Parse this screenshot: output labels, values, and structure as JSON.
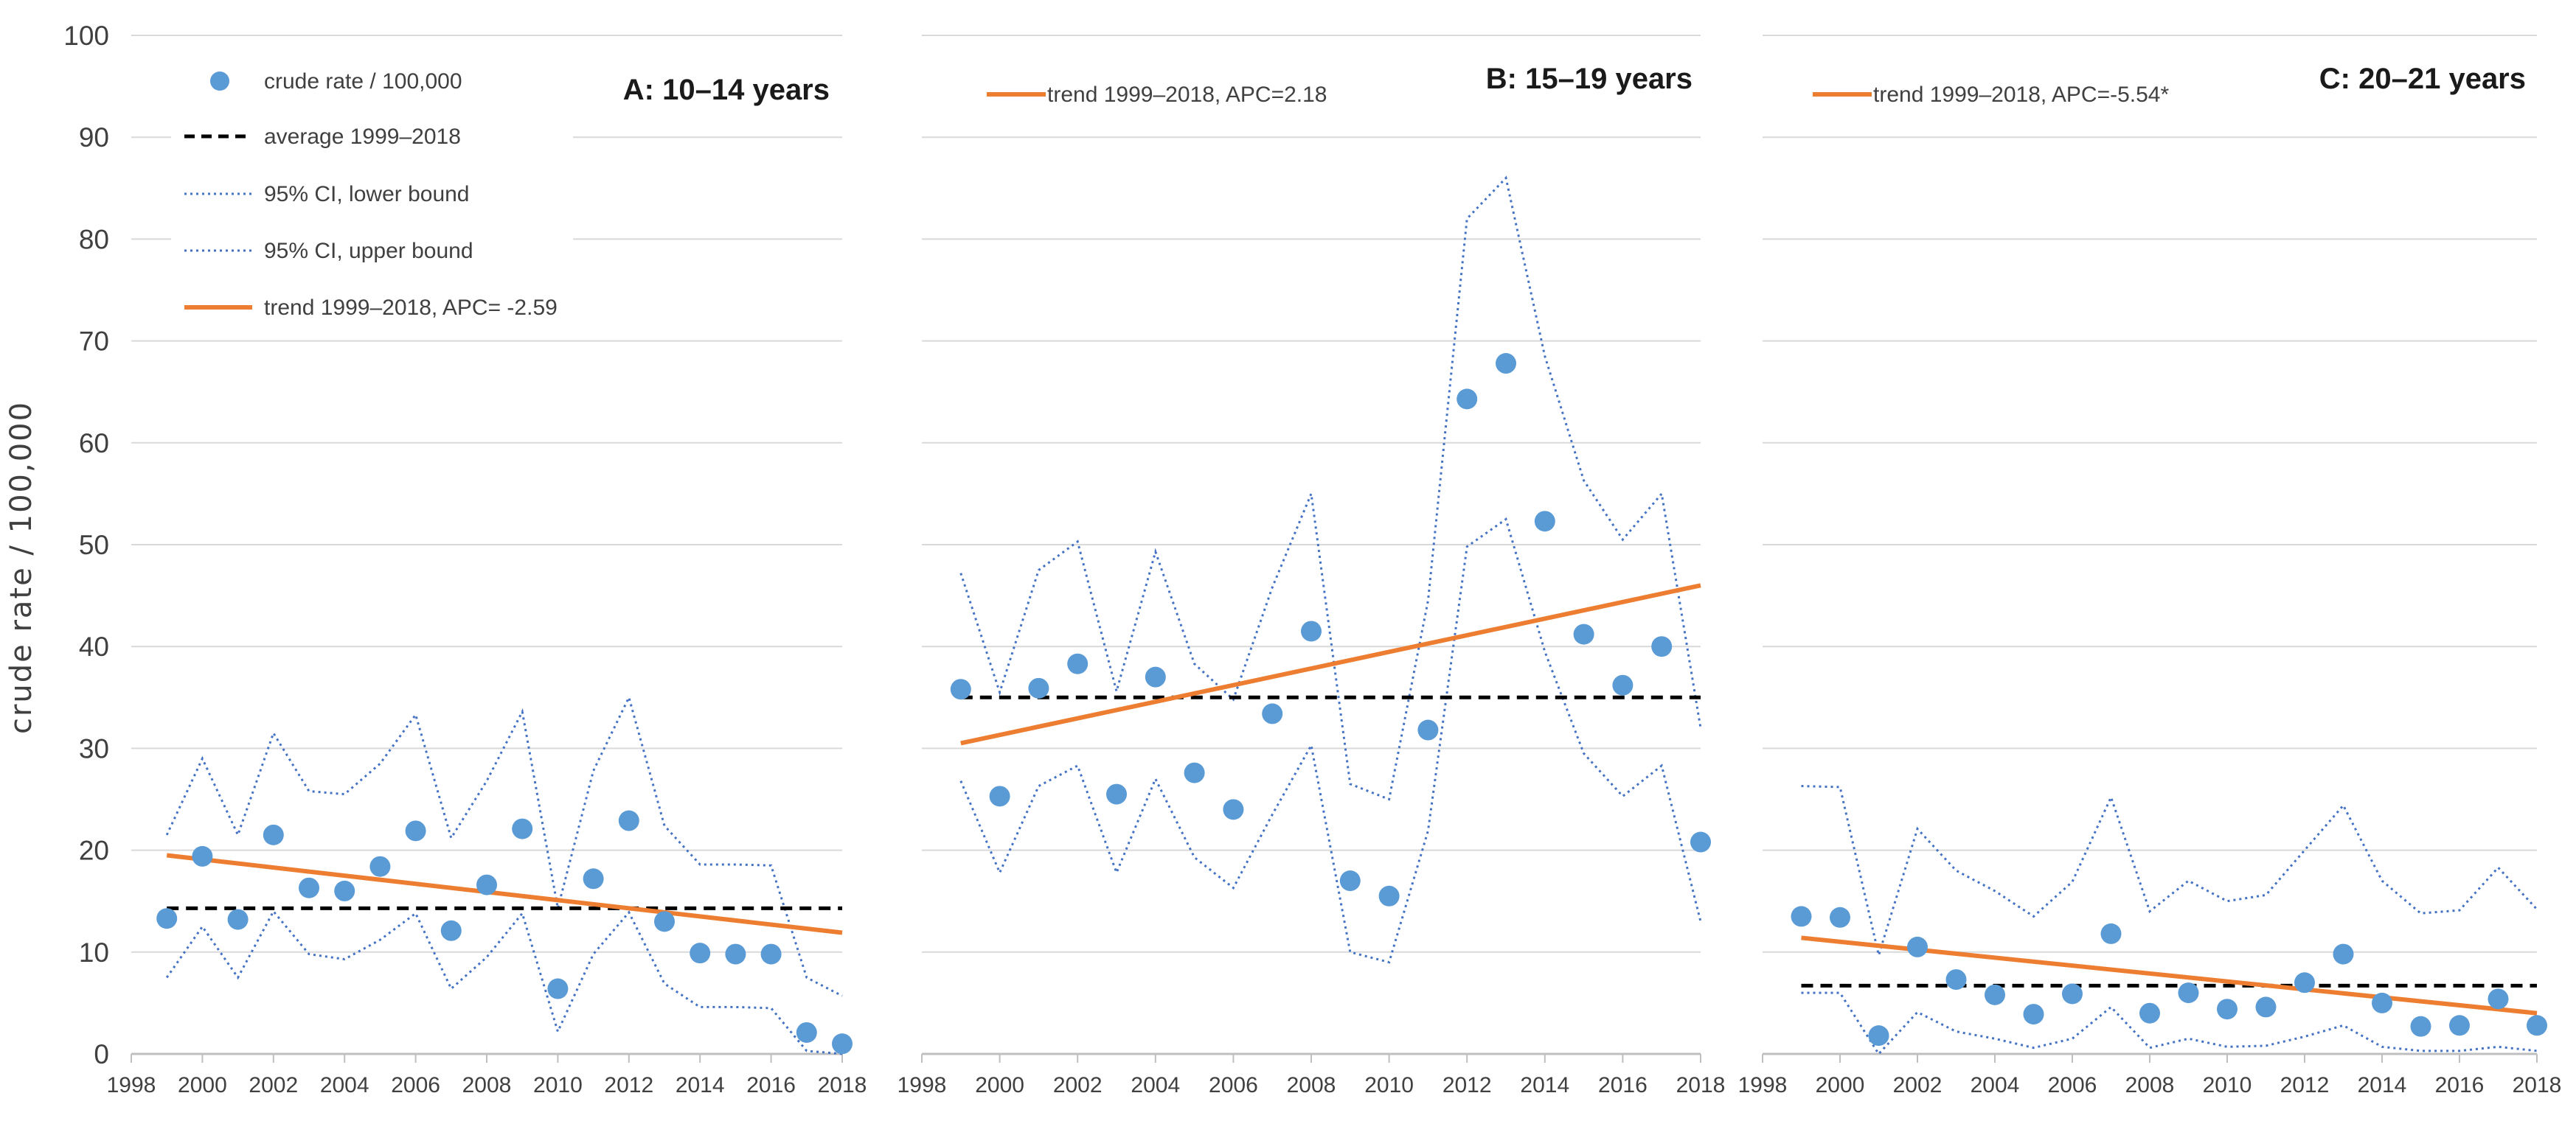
{
  "chart_data": {
    "ylabel": "crude rate / 100,000",
    "ylim": [
      0,
      100
    ],
    "yticks": [
      0,
      10,
      20,
      30,
      40,
      50,
      60,
      70,
      80,
      90,
      100
    ],
    "xlim": [
      1998,
      2018
    ],
    "xticks": [
      1998,
      2000,
      2002,
      2004,
      2006,
      2008,
      2010,
      2012,
      2014,
      2016,
      2018
    ],
    "years": [
      1999,
      2000,
      2001,
      2002,
      2003,
      2004,
      2005,
      2006,
      2007,
      2008,
      2009,
      2010,
      2011,
      2012,
      2013,
      2014,
      2015,
      2016,
      2017,
      2018
    ],
    "series_names": {
      "crude": "crude rate / 100,000",
      "average": "average 1999–2018",
      "ci_lower": "95% CI, lower bound",
      "ci_upper": "95% CI, upper bound"
    },
    "colors": {
      "crude": "#5b9bd5",
      "average": "#000000",
      "ci": "#4472c4",
      "trend": "#ed7d31",
      "grid": "#d9d9d9",
      "axis": "#bfbfbf"
    },
    "panels": [
      {
        "type": "scatter+line",
        "title": "A: 10–14 years",
        "trend_label": "trend 1999–2018, APC= -2.59",
        "crude": [
          13.3,
          19.4,
          13.2,
          21.5,
          16.3,
          16.0,
          18.4,
          21.9,
          12.1,
          16.6,
          22.1,
          6.4,
          17.2,
          22.9,
          13.0,
          9.9,
          9.8,
          9.8,
          2.1,
          1.0
        ],
        "ci_lower": [
          7.5,
          12.5,
          7.5,
          14.0,
          9.8,
          9.3,
          11.2,
          13.8,
          6.4,
          9.5,
          13.8,
          2.2,
          9.8,
          13.9,
          6.9,
          4.6,
          4.6,
          4.5,
          0.3,
          0.0
        ],
        "ci_upper": [
          21.5,
          29.0,
          21.5,
          31.5,
          25.8,
          25.5,
          28.5,
          33.3,
          21.2,
          26.8,
          33.6,
          14.3,
          27.8,
          35.0,
          22.4,
          18.6,
          18.6,
          18.5,
          7.5,
          5.7
        ],
        "average": 14.3,
        "trend": [
          19.5,
          11.9
        ]
      },
      {
        "type": "scatter+line",
        "title": "B: 15–19 years",
        "trend_label": "trend 1999–2018, APC=2.18",
        "crude": [
          35.8,
          25.3,
          35.9,
          38.3,
          25.5,
          37.0,
          27.6,
          24.0,
          33.4,
          41.5,
          17.0,
          15.5,
          31.8,
          64.3,
          67.8,
          52.3,
          41.2,
          36.2,
          40.0,
          20.8
        ],
        "ci_lower": [
          26.8,
          17.8,
          26.3,
          28.3,
          17.8,
          27.0,
          19.3,
          16.3,
          23.5,
          30.3,
          10.0,
          9.0,
          21.9,
          49.8,
          52.5,
          39.5,
          29.5,
          25.3,
          28.3,
          13.0
        ],
        "ci_upper": [
          47.2,
          35.5,
          47.5,
          50.3,
          35.6,
          49.3,
          38.3,
          34.8,
          45.8,
          55.0,
          26.5,
          25.0,
          44.5,
          82.0,
          86.0,
          68.5,
          56.3,
          50.5,
          55.0,
          32.0
        ],
        "average": 35.0,
        "trend": [
          30.5,
          46.0
        ]
      },
      {
        "type": "scatter+line",
        "title": "C: 20–21 years",
        "trend_label": "trend 1999–2018, APC=-5.54*",
        "crude": [
          13.5,
          13.4,
          1.8,
          10.5,
          7.3,
          5.8,
          3.9,
          5.9,
          11.8,
          4.0,
          6.0,
          4.4,
          4.6,
          7.0,
          9.8,
          5.0,
          2.7,
          2.8,
          5.4,
          2.8
        ],
        "ci_lower": [
          6.0,
          6.0,
          0.0,
          4.1,
          2.2,
          1.5,
          0.6,
          1.5,
          4.6,
          0.6,
          1.5,
          0.7,
          0.8,
          1.7,
          2.8,
          0.7,
          0.3,
          0.3,
          0.7,
          0.3
        ],
        "ci_upper": [
          26.3,
          26.2,
          9.7,
          22.1,
          18.0,
          16.0,
          13.5,
          16.9,
          25.2,
          14.0,
          17.0,
          15.0,
          15.6,
          20.0,
          24.4,
          17.0,
          13.8,
          14.1,
          18.3,
          14.2
        ],
        "average": 6.7,
        "trend": [
          11.4,
          4.0
        ]
      }
    ]
  }
}
